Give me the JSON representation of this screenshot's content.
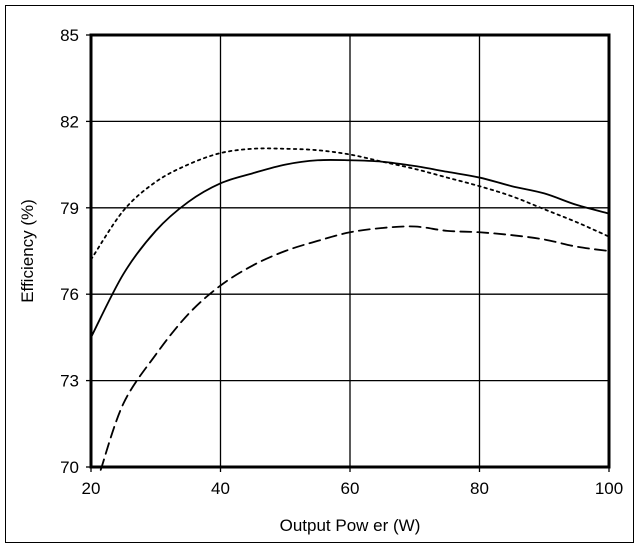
{
  "chart_data": {
    "type": "line",
    "title": "",
    "xlabel": "Output Pow er (W)",
    "ylabel": "Efficiency (%)",
    "xlim": [
      20,
      100
    ],
    "ylim": [
      70,
      85
    ],
    "x_ticks": [
      "20",
      "40",
      "60",
      "80",
      "100"
    ],
    "y_ticks": [
      "70",
      "73",
      "76",
      "79",
      "82",
      "85"
    ],
    "grid": true,
    "legend": "none",
    "series": [
      {
        "style": "solid",
        "points": [
          [
            20,
            74.5
          ],
          [
            25,
            76.7
          ],
          [
            30,
            78.2
          ],
          [
            35,
            79.2
          ],
          [
            40,
            79.85
          ],
          [
            45,
            80.2
          ],
          [
            50,
            80.5
          ],
          [
            55,
            80.65
          ],
          [
            60,
            80.65
          ],
          [
            65,
            80.6
          ],
          [
            70,
            80.45
          ],
          [
            75,
            80.25
          ],
          [
            80,
            80.05
          ],
          [
            85,
            79.75
          ],
          [
            90,
            79.5
          ],
          [
            95,
            79.1
          ],
          [
            100,
            78.8
          ]
        ]
      },
      {
        "style": "dotted",
        "points": [
          [
            20,
            77.2
          ],
          [
            25,
            78.9
          ],
          [
            30,
            79.9
          ],
          [
            35,
            80.5
          ],
          [
            40,
            80.9
          ],
          [
            45,
            81.05
          ],
          [
            50,
            81.05
          ],
          [
            55,
            81.0
          ],
          [
            60,
            80.85
          ],
          [
            65,
            80.6
          ],
          [
            70,
            80.35
          ],
          [
            75,
            80.05
          ],
          [
            80,
            79.75
          ],
          [
            85,
            79.4
          ],
          [
            90,
            78.95
          ],
          [
            95,
            78.5
          ],
          [
            100,
            78.0
          ]
        ]
      },
      {
        "style": "dashed",
        "points": [
          [
            21.5,
            69.9
          ],
          [
            25,
            72.2
          ],
          [
            30,
            73.9
          ],
          [
            35,
            75.3
          ],
          [
            40,
            76.3
          ],
          [
            45,
            77.0
          ],
          [
            50,
            77.5
          ],
          [
            55,
            77.85
          ],
          [
            60,
            78.15
          ],
          [
            65,
            78.3
          ],
          [
            70,
            78.35
          ],
          [
            75,
            78.2
          ],
          [
            80,
            78.15
          ],
          [
            85,
            78.05
          ],
          [
            90,
            77.9
          ],
          [
            95,
            77.65
          ],
          [
            100,
            77.5
          ]
        ]
      }
    ]
  }
}
